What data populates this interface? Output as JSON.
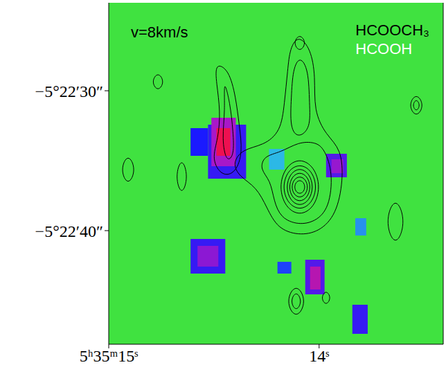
{
  "chart_data": {
    "type": "heatmap",
    "annotation": "v=8km/s",
    "legend": "upper right",
    "grid": false,
    "xlim": [
      15,
      13.41
    ],
    "xticks": [
      {
        "value": 15,
        "label": "5ʰ35ᵐ15ˢ"
      },
      {
        "value": 14,
        "label": "14ˢ"
      }
    ],
    "ylim": [
      -19368.12,
      -19343.71
    ],
    "yticks": [
      {
        "value": -19350,
        "label": "−5°22′30″"
      },
      {
        "value": -19360,
        "label": "−5°22′40″"
      }
    ],
    "series": [
      {
        "name": "HCOOCH₃",
        "type": "contour",
        "color": "#000000",
        "contours": [
          [
            [
              14.099,
              -19345.99
            ],
            [
              14.04,
              -19346.98
            ],
            [
              14.017,
              -19348.96
            ],
            [
              14.026,
              -19351.44
            ],
            [
              13.967,
              -19353.17
            ],
            [
              13.894,
              -19354.16
            ],
            [
              13.885,
              -19356.39
            ],
            [
              13.918,
              -19358.86
            ],
            [
              14.0,
              -19360.1
            ],
            [
              14.099,
              -19360.35
            ],
            [
              14.198,
              -19359.85
            ],
            [
              14.248,
              -19358.37
            ],
            [
              14.297,
              -19356.88
            ],
            [
              14.38,
              -19356.14
            ],
            [
              14.413,
              -19355.15
            ],
            [
              14.363,
              -19354.16
            ],
            [
              14.264,
              -19353.91
            ],
            [
              14.182,
              -19352.92
            ],
            [
              14.165,
              -19350.94
            ],
            [
              14.149,
              -19348.47
            ],
            [
              14.139,
              -19346.98
            ]
          ],
          [
            [
              14.092,
              -19347.48
            ],
            [
              14.05,
              -19348.47
            ],
            [
              14.046,
              -19350.94
            ],
            [
              14.04,
              -19352.67
            ],
            [
              14.099,
              -19353.42
            ],
            [
              14.139,
              -19352.67
            ],
            [
              14.132,
              -19350.45
            ],
            [
              14.125,
              -19348.47
            ]
          ],
          [
            [
              14.059,
              -19346.58
            ],
            [
              14.092,
              -19347.28
            ],
            [
              14.125,
              -19346.58
            ],
            [
              14.092,
              -19345.89
            ]
          ],
          [
            [
              13.974,
              -19354.16
            ],
            [
              13.934,
              -19355.89
            ],
            [
              13.951,
              -19358.37
            ],
            [
              14.017,
              -19359.36
            ],
            [
              14.099,
              -19359.6
            ],
            [
              14.182,
              -19359.11
            ],
            [
              14.215,
              -19357.87
            ],
            [
              14.231,
              -19356.39
            ],
            [
              14.281,
              -19355.64
            ],
            [
              14.264,
              -19354.65
            ],
            [
              14.182,
              -19354.41
            ],
            [
              14.099,
              -19353.66
            ],
            [
              14.017,
              -19353.66
            ]
          ],
          [
            [
              14.495,
              -19347.97
            ],
            [
              14.429,
              -19348.47
            ],
            [
              14.396,
              -19350.45
            ],
            [
              14.38,
              -19352.43
            ],
            [
              14.363,
              -19354.41
            ],
            [
              14.396,
              -19355.89
            ],
            [
              14.462,
              -19356.14
            ],
            [
              14.512,
              -19354.9
            ],
            [
              14.479,
              -19353.42
            ],
            [
              14.469,
              -19351.44
            ],
            [
              14.488,
              -19349.46
            ]
          ],
          [
            [
              14.455,
              -19348.96
            ],
            [
              14.422,
              -19350.94
            ],
            [
              14.409,
              -19352.92
            ],
            [
              14.403,
              -19354.65
            ],
            [
              14.442,
              -19355.15
            ],
            [
              14.462,
              -19353.42
            ],
            [
              14.446,
              -19351.44
            ]
          ],
          [
            [
              14.118,
              -19356.88
            ],
            [
              14.11,
              -19357.23
            ],
            [
              14.092,
              -19357.38
            ],
            [
              14.074,
              -19357.23
            ],
            [
              14.066,
              -19356.88
            ],
            [
              14.074,
              -19356.53
            ],
            [
              14.092,
              -19356.38
            ],
            [
              14.11,
              -19356.53
            ]
          ],
          [
            [
              14.132,
              -19356.88
            ],
            [
              14.12,
              -19357.43
            ],
            [
              14.092,
              -19357.67
            ],
            [
              14.064,
              -19357.43
            ],
            [
              14.052,
              -19356.88
            ],
            [
              14.064,
              -19356.33
            ],
            [
              14.092,
              -19356.09
            ],
            [
              14.12,
              -19356.33
            ]
          ],
          [
            [
              14.145,
              -19356.88
            ],
            [
              14.129,
              -19357.64
            ],
            [
              14.092,
              -19357.97
            ],
            [
              14.055,
              -19357.64
            ],
            [
              14.039,
              -19356.88
            ],
            [
              14.055,
              -19356.12
            ],
            [
              14.092,
              -19355.79
            ],
            [
              14.129,
              -19356.12
            ]
          ],
          [
            [
              14.158,
              -19356.88
            ],
            [
              14.138,
              -19357.85
            ],
            [
              14.092,
              -19358.27
            ],
            [
              14.046,
              -19357.85
            ],
            [
              14.026,
              -19356.88
            ],
            [
              14.046,
              -19355.91
            ],
            [
              14.092,
              -19355.49
            ],
            [
              14.138,
              -19355.91
            ]
          ],
          [
            [
              14.175,
              -19356.88
            ],
            [
              14.15,
              -19358.06
            ],
            [
              14.092,
              -19358.56
            ],
            [
              14.034,
              -19358.06
            ],
            [
              14.009,
              -19356.88
            ],
            [
              14.034,
              -19355.7
            ],
            [
              14.092,
              -19355.2
            ],
            [
              14.15,
              -19355.7
            ]
          ],
          [
            [
              14.191,
              -19356.88
            ],
            [
              14.161,
              -19358.34
            ],
            [
              14.092,
              -19358.96
            ],
            [
              14.023,
              -19358.34
            ],
            [
              13.993,
              -19356.88
            ],
            [
              14.023,
              -19355.42
            ],
            [
              14.092,
              -19354.8
            ],
            [
              14.161,
              -19355.42
            ]
          ],
          [
            [
              14.766,
              -19348.61
            ],
            [
              14.733,
              -19349.36
            ],
            [
              14.766,
              -19350.1
            ],
            [
              14.799,
              -19349.36
            ]
          ],
          [
            [
              14.653,
              -19354.65
            ],
            [
              14.62,
              -19356.14
            ],
            [
              14.653,
              -19357.62
            ],
            [
              14.686,
              -19356.14
            ]
          ],
          [
            [
              13.538,
              -19350.1
            ],
            [
              13.498,
              -19351.04
            ],
            [
              13.538,
              -19351.98
            ],
            [
              13.578,
              -19351.04
            ]
          ],
          [
            [
              13.538,
              -19350.54
            ],
            [
              13.518,
              -19351.04
            ],
            [
              13.538,
              -19351.53
            ],
            [
              13.558,
              -19351.04
            ]
          ],
          [
            [
              13.637,
              -19357.38
            ],
            [
              13.584,
              -19359.36
            ],
            [
              13.637,
              -19361.34
            ],
            [
              13.69,
              -19359.36
            ]
          ],
          [
            [
              14.109,
              -19363.66
            ],
            [
              14.056,
              -19365.05
            ],
            [
              14.109,
              -19366.44
            ],
            [
              14.162,
              -19365.05
            ]
          ],
          [
            [
              14.109,
              -19364.26
            ],
            [
              14.079,
              -19365.05
            ],
            [
              14.109,
              -19365.84
            ],
            [
              14.139,
              -19365.05
            ]
          ],
          [
            [
              13.967,
              -19364.21
            ],
            [
              13.941,
              -19364.8
            ],
            [
              13.967,
              -19365.4
            ],
            [
              13.993,
              -19364.8
            ]
          ],
          [
            [
              14.908,
              -19354.41
            ],
            [
              14.868,
              -19355.64
            ],
            [
              14.908,
              -19356.88
            ],
            [
              14.947,
              -19355.64
            ]
          ]
        ]
      },
      {
        "name": "HCOOH",
        "type": "heatmap",
        "color": "#ffffff",
        "color_range": [
          0,
          1
        ],
        "cells": [
          {
            "x": [
              14.238,
              14.165
            ],
            "y": [
              -19354.16,
              -19355.64
            ],
            "value": 0.3
          },
          {
            "x": [
              14.611,
              14.528
            ],
            "y": [
              -19352.67,
              -19354.65
            ],
            "value": 0.5
          },
          {
            "x": [
              14.528,
              14.347
            ],
            "y": [
              -19352.43,
              -19356.29
            ],
            "value": 0.55
          },
          {
            "x": [
              14.512,
              14.396
            ],
            "y": [
              -19351.93,
              -19355.4
            ],
            "value": 0.75
          },
          {
            "x": [
              14.488,
              14.422
            ],
            "y": [
              -19352.67,
              -19354.65
            ],
            "value": 1.0
          },
          {
            "x": [
              13.967,
              13.868
            ],
            "y": [
              -19354.5,
              -19356.19
            ],
            "value": 0.6
          },
          {
            "x": [
              13.941,
              13.885
            ],
            "y": [
              -19354.9,
              -19355.89
            ],
            "value": 0.72
          },
          {
            "x": [
              14.611,
              14.446
            ],
            "y": [
              -19360.59,
              -19363.07
            ],
            "value": 0.55
          },
          {
            "x": [
              14.578,
              14.479
            ],
            "y": [
              -19361.09,
              -19362.57
            ],
            "value": 0.7
          },
          {
            "x": [
              14.066,
              13.974
            ],
            "y": [
              -19362.08,
              -19364.55
            ],
            "value": 0.6
          },
          {
            "x": [
              14.043,
              13.993
            ],
            "y": [
              -19362.57,
              -19364.21
            ],
            "value": 0.8
          },
          {
            "x": [
              13.842,
              13.769
            ],
            "y": [
              -19365.3,
              -19367.38
            ],
            "value": 0.55
          },
          {
            "x": [
              14.198,
              14.132
            ],
            "y": [
              -19362.23,
              -19363.07
            ],
            "value": 0.45
          },
          {
            "x": [
              13.828,
              13.776
            ],
            "y": [
              -19359.11,
              -19360.35
            ],
            "value": 0.35
          }
        ]
      }
    ]
  }
}
